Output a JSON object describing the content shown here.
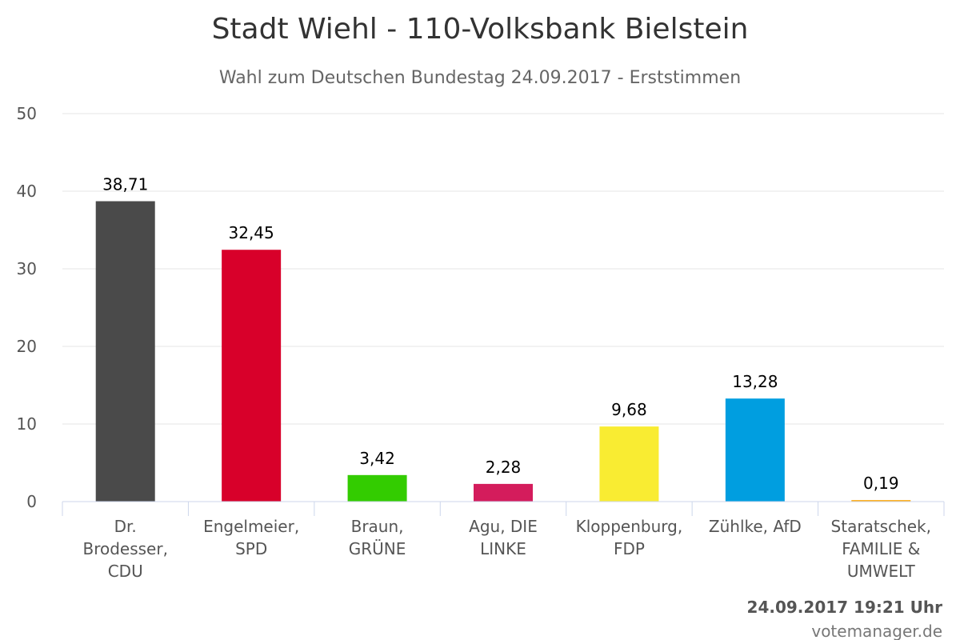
{
  "chart_data": {
    "type": "bar",
    "title": "Stadt Wiehl - 110-Volksbank Bielstein",
    "subtitle": "Wahl zum Deutschen Bundestag 24.09.2017 - Erststimmen",
    "categories": [
      [
        "Dr.",
        "Brodesser,",
        "CDU"
      ],
      [
        "Engelmeier,",
        "SPD"
      ],
      [
        "Braun,",
        "GRÜNE"
      ],
      [
        "Agu, DIE",
        "LINKE"
      ],
      [
        "Kloppenburg,",
        "FDP"
      ],
      [
        "Zühlke, AfD"
      ],
      [
        "Staratschek,",
        "FAMILIE &",
        "UMWELT"
      ]
    ],
    "values": [
      38.71,
      32.45,
      3.42,
      2.28,
      9.68,
      13.28,
      0.19
    ],
    "value_labels": [
      "38,71",
      "32,45",
      "3,42",
      "2,28",
      "9,68",
      "13,28",
      "0,19"
    ],
    "colors": [
      "#4a4a4a",
      "#d8002a",
      "#33cc00",
      "#d41c5c",
      "#f9ec32",
      "#009ee0",
      "#ffa500"
    ],
    "ylim": [
      0,
      50
    ],
    "yticks": [
      0,
      10,
      20,
      30,
      40,
      50
    ],
    "grid": true
  },
  "footer": {
    "timestamp": "24.09.2017 19:21 Uhr",
    "credit": "votemanager.de"
  }
}
